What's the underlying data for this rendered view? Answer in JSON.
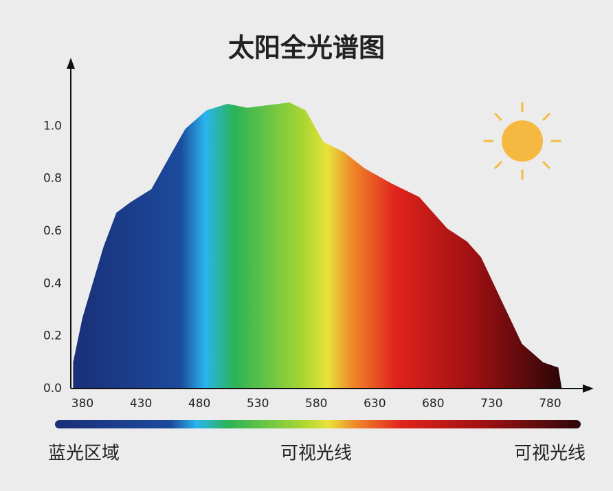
{
  "chart_data": {
    "type": "area",
    "title": "太阳全光谱图",
    "x": [
      372,
      380,
      398,
      409,
      421,
      439,
      454,
      468,
      486,
      504,
      521,
      539,
      557,
      571,
      586,
      604,
      621,
      645,
      668,
      692,
      709,
      721,
      739,
      756,
      774,
      787,
      790
    ],
    "values": [
      0.1,
      0.27,
      0.54,
      0.67,
      0.71,
      0.76,
      0.88,
      0.99,
      1.06,
      1.085,
      1.07,
      1.08,
      1.09,
      1.06,
      0.94,
      0.9,
      0.84,
      0.78,
      0.73,
      0.61,
      0.56,
      0.5,
      0.33,
      0.17,
      0.1,
      0.08,
      0
    ],
    "xlim": [
      370,
      815
    ],
    "ylim": [
      0,
      1.25
    ],
    "xticks": [
      380,
      430,
      480,
      530,
      580,
      630,
      680,
      730,
      780
    ],
    "yticks": [
      {
        "value": 0,
        "label": "0.0"
      },
      0.2,
      0.4,
      0.6,
      0.8,
      {
        "value": 1,
        "label": "1.0"
      }
    ],
    "annotations": [
      "蓝光区域",
      "可视光线",
      "可视光线"
    ]
  }
}
